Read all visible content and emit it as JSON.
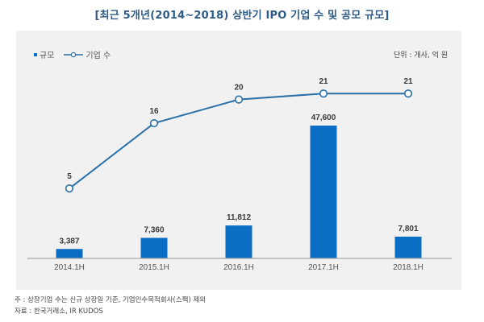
{
  "title": "[최근 5개년(2014~2018) 상반기 IPO 기업 수 및 공모 규모]",
  "unit_label": "단위 : 개사, 억 원",
  "legend": {
    "bar_label": "규모",
    "line_label": "기업 수"
  },
  "notes": {
    "note": "주 : 상장기업 수는 신규 상장일 기준, 기업인수목적회사(스팩) 제외",
    "source": "자료 : 한국거래소, IR KUDOS"
  },
  "colors": {
    "bar": "#0a6ec4",
    "line": "#2a70a8",
    "title": "#2e5a87",
    "panel": "#f1f1f1"
  },
  "chart_data": {
    "type": "bar+line",
    "title": "[최근 5개년(2014~2018) 상반기 IPO 기업 수 및 공모 규모]",
    "xlabel": "",
    "ylabel": "",
    "categories": [
      "2014.1H",
      "2015.1H",
      "2016.1H",
      "2017.1H",
      "2018.1H"
    ],
    "series": [
      {
        "name": "규모",
        "type": "bar",
        "axis": "left",
        "values": [
          3387,
          7360,
          11812,
          47600,
          7801
        ],
        "labels": [
          "3,387",
          "7,360",
          "11,812",
          "47,600",
          "7,801"
        ]
      },
      {
        "name": "기업 수",
        "type": "line",
        "axis": "right",
        "marker": "open-circle",
        "values": [
          5,
          16,
          20,
          21,
          21
        ],
        "labels": [
          "5",
          "16",
          "20",
          "21",
          "21"
        ]
      }
    ],
    "bar_ylim": [
      0,
      47600
    ],
    "line_ylim": [
      0,
      21
    ],
    "grid": false,
    "legend_position": "top-left",
    "unit": "단위 : 개사, 억 원"
  }
}
